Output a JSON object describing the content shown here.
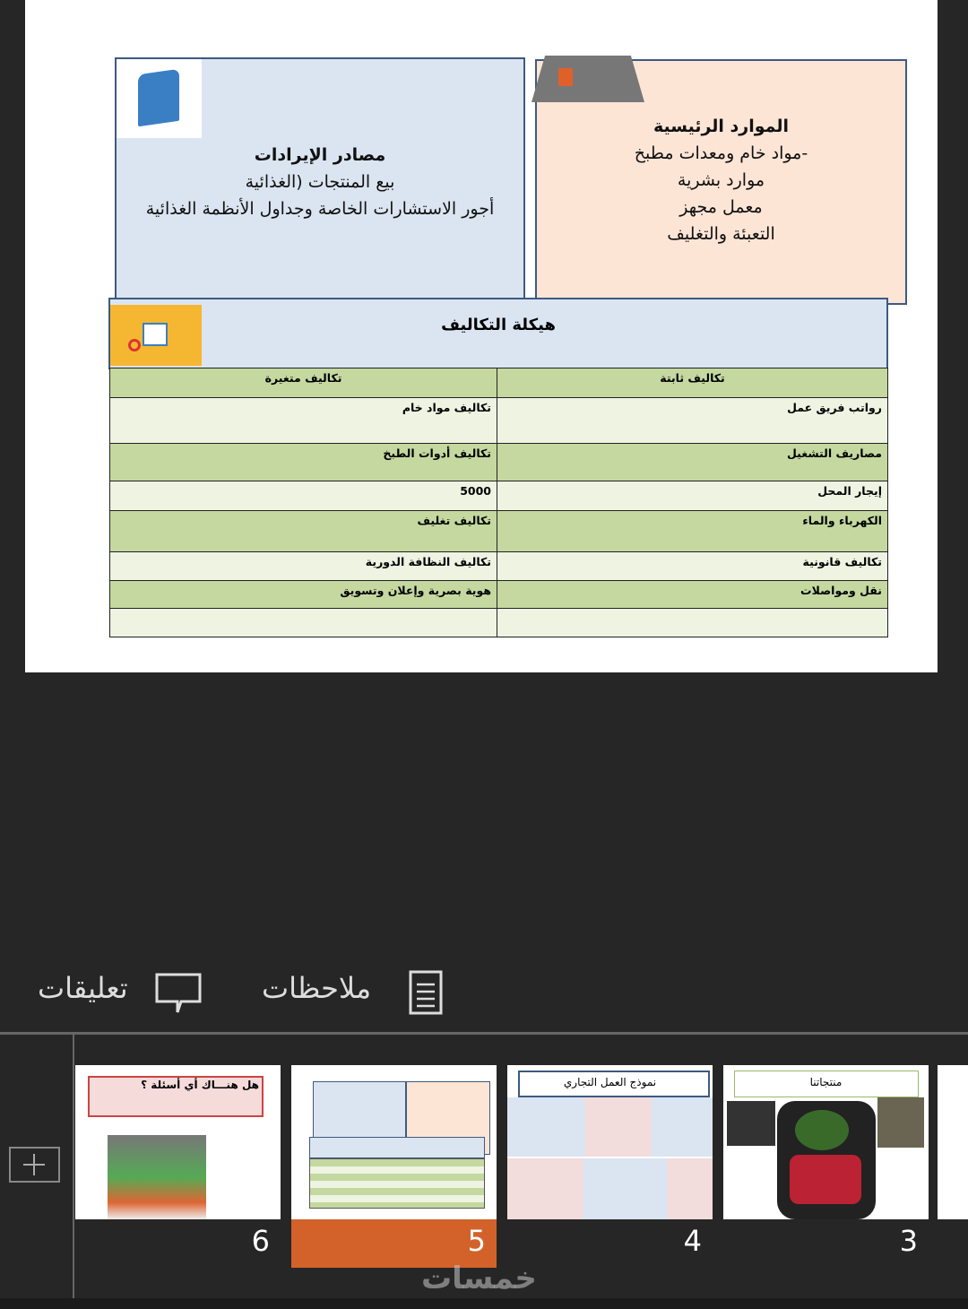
{
  "slide": {
    "revenue": {
      "title": "مصادر الإيرادات",
      "lines": [
        "بيع المنتجات (الغذائية",
        "أجور الاستشارات الخاصة وجداول الأنظمة الغذائية"
      ]
    },
    "resources": {
      "title": "الموارد الرئيسية",
      "lines": [
        "-مواد خام ومعدات مطبخ",
        "موارد بشرية",
        "معمل مجهز",
        "التعبئة والتغليف"
      ]
    },
    "costs": {
      "title": "هيكلة التكاليف",
      "headers": {
        "fixed": "تكاليف ثابتة",
        "variable": "تكاليف متغيرة"
      },
      "rows": [
        {
          "fixed": "رواتب فريق عمل",
          "variable": "تكاليف مواد خام"
        },
        {
          "fixed": "مصاريف التشغيل",
          "variable": "تكاليف أدوات الطبخ"
        },
        {
          "fixed": "إيجار المحل",
          "variable": "5000"
        },
        {
          "fixed": "الكهرباء والماء",
          "variable": "تكاليف تغليف"
        },
        {
          "fixed": "تكاليف قانونية",
          "variable": "تكاليف النظافة الدورية"
        },
        {
          "fixed": "نقل ومواصلات",
          "variable": "هوية بصرية وإعلان وتسويق"
        },
        {
          "fixed": "",
          "variable": ""
        }
      ]
    }
  },
  "toolbar": {
    "comments": "تعليقات",
    "notes": "ملاحظات"
  },
  "thumbnails": [
    {
      "number": "6",
      "title": "هل هنـــاك أي أسئلة ؟"
    },
    {
      "number": "5",
      "title": "",
      "selected": true
    },
    {
      "number": "4",
      "title": "نموذج العمل التجاري"
    },
    {
      "number": "3",
      "title": "منتجاتنا"
    }
  ],
  "watermark": "خمسات",
  "colors": {
    "selected": "#d2622a",
    "header_green": "#c4d8a0"
  }
}
